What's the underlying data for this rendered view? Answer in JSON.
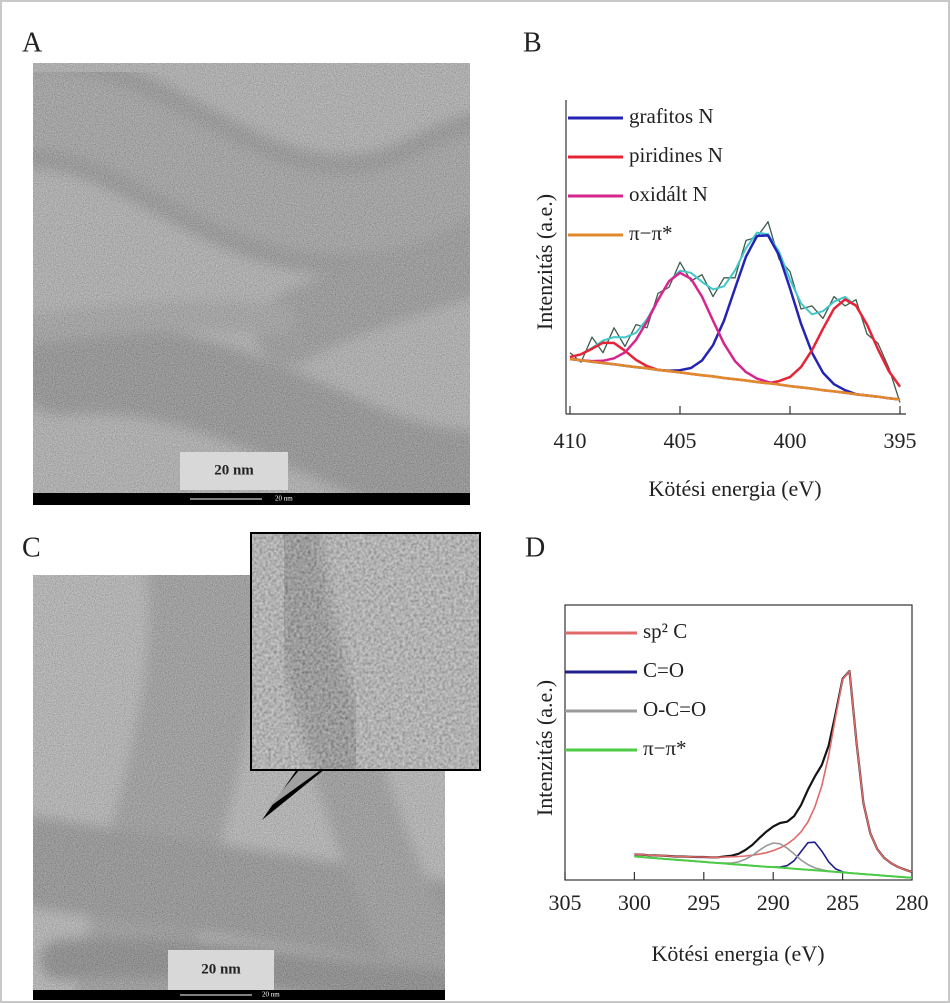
{
  "figure": {
    "panel_labels": [
      "A",
      "B",
      "C",
      "D"
    ]
  },
  "images": [
    {
      "scale_label": "20 nm",
      "scale_bar_label": "20 nm"
    },
    {
      "scale_label": "20 nm",
      "scale_bar_label": "20 nm"
    }
  ],
  "chart_data": [
    {
      "type": "line",
      "xlabel": "Kötési energia (eV)",
      "ylabel": "Intenzitás (a.e.)",
      "xlim": [
        410,
        395
      ],
      "xticks": [
        410,
        405,
        400,
        395
      ],
      "ylim": [
        0,
        100
      ],
      "legend": "upper left",
      "x": [
        410,
        409.5,
        409,
        408.5,
        408,
        407.5,
        407,
        406.5,
        406,
        405.5,
        405,
        404.5,
        404,
        403.5,
        403,
        402.5,
        402,
        401.5,
        401,
        400.5,
        400,
        399.5,
        399,
        398.5,
        398,
        397.5,
        397,
        396.5,
        396,
        395.5,
        395
      ],
      "series": [
        {
          "color": "#3d5c4c",
          "width": 1.3,
          "values": [
            19,
            16,
            24,
            19,
            27,
            21,
            28,
            27,
            38,
            40,
            48,
            42,
            44,
            37,
            43,
            43,
            55,
            56,
            61,
            49,
            45,
            33,
            34,
            30,
            37,
            34,
            36,
            25,
            22,
            14,
            3
          ]
        },
        {
          "color": "#40c8c8",
          "width": 2,
          "values": [
            17.6,
            18.5,
            20.5,
            22.9,
            24.0,
            23.9,
            25.4,
            29.7,
            35.9,
            41.9,
            45.3,
            44.6,
            41.7,
            39.3,
            40.3,
            45.4,
            52.5,
            57.5,
            57.0,
            51.4,
            42.5,
            34.8,
            31.3,
            32.3,
            35.4,
            36.9,
            34.1,
            28.0,
            20.1,
            13.0,
            8.1
          ]
        },
        {
          "name": "grafitos N",
          "color": "#2424b4",
          "width": 2.5,
          "values": [
            17.0,
            16.6,
            16.1,
            15.7,
            15.3,
            14.8,
            14.4,
            14.0,
            13.5,
            13.2,
            13.4,
            14.1,
            16.5,
            21.4,
            29.3,
            39.6,
            49.8,
            56.4,
            56.6,
            50.3,
            39.6,
            28.3,
            19.0,
            12.6,
            8.9,
            7.0,
            5.7,
            5.3,
            4.9,
            4.4,
            4.0
          ]
        },
        {
          "name": "piridines N",
          "color": "#e62436",
          "width": 2.5,
          "values": [
            17.6,
            18.5,
            20.3,
            22.2,
            22.1,
            19.6,
            16.7,
            14.7,
            13.5,
            13.1,
            12.7,
            12.2,
            11.8,
            11.4,
            10.9,
            10.5,
            10.1,
            9.6,
            9.2,
            9.9,
            11.2,
            14.4,
            19.8,
            26.7,
            33.1,
            36.1,
            34.1,
            28.0,
            20.1,
            13.0,
            8.1
          ]
        },
        {
          "name": "oxidált N",
          "color": "#d6268e",
          "width": 2.5,
          "values": [
            17.0,
            16.6,
            16.3,
            16.4,
            17.2,
            19.1,
            23.1,
            29.0,
            35.9,
            41.9,
            44.6,
            42.7,
            37.0,
            29.3,
            21.9,
            16.3,
            12.8,
            10.7,
            9.6,
            8.8,
            8.3,
            7.9,
            7.5,
            7.0,
            6.6,
            6.2,
            5.7,
            5.3,
            4.9,
            4.4,
            4.0
          ]
        },
        {
          "name": "π−π*",
          "color": "#e08a2c",
          "width": 2.5,
          "values": [
            17.0,
            16.6,
            16.1,
            15.7,
            15.3,
            14.8,
            14.4,
            14.0,
            13.5,
            13.1,
            12.7,
            12.2,
            11.8,
            11.4,
            10.9,
            10.5,
            10.1,
            9.6,
            9.2,
            8.8,
            8.3,
            7.9,
            7.5,
            7.0,
            6.6,
            6.2,
            5.7,
            5.3,
            4.9,
            4.4,
            4.0
          ]
        }
      ]
    },
    {
      "type": "line",
      "xlabel": "Kötési energia (eV)",
      "ylabel": "Intenzitás (a.e.)",
      "xlim": [
        305,
        280
      ],
      "xticks": [
        305,
        300,
        295,
        290,
        285,
        280
      ],
      "ylim": [
        0,
        100
      ],
      "legend": "upper left",
      "x": [
        300,
        299.5,
        299,
        298.5,
        298,
        297.5,
        297,
        296.5,
        296,
        295.5,
        295,
        294.5,
        294,
        293.5,
        293,
        292.5,
        292,
        291.5,
        291,
        290.5,
        290,
        289.5,
        289,
        288.5,
        288,
        287.5,
        287,
        286.5,
        286,
        285.5,
        285,
        284.5,
        284,
        283.5,
        283,
        282.5,
        282,
        281.5,
        281,
        280.5,
        280
      ],
      "series": [
        {
          "color": "#151515",
          "width": 2.2,
          "values": [
            9.5,
            9.4,
            9.2,
            9.1,
            9.0,
            8.9,
            8.7,
            8.7,
            8.6,
            8.5,
            8.5,
            8.4,
            8.4,
            8.7,
            9.0,
            9.7,
            11.1,
            13.0,
            15.5,
            17.9,
            19.8,
            21.1,
            21.6,
            23.6,
            27.7,
            33.4,
            38.3,
            42.6,
            49.8,
            61.8,
            74.5,
            77.4,
            51.0,
            28.5,
            17.2,
            11.4,
            8.2,
            6.2,
            4.8,
            3.8,
            3.0
          ]
        },
        {
          "name": "sp² C",
          "color": "#e06a6a",
          "width": 1.6,
          "values": [
            9.5,
            9.4,
            9.2,
            9.1,
            9.0,
            8.9,
            8.7,
            8.7,
            8.6,
            8.5,
            8.5,
            8.4,
            8.4,
            8.5,
            8.6,
            8.7,
            8.9,
            9.2,
            9.6,
            10.1,
            10.9,
            11.9,
            13.3,
            15.2,
            17.8,
            21.5,
            27.0,
            34.9,
            46.2,
            60.7,
            74.3,
            77.4,
            51.0,
            28.5,
            17.2,
            11.4,
            8.2,
            6.2,
            4.8,
            3.8,
            3.0
          ]
        },
        {
          "name": "C=O",
          "color": "#20208c",
          "width": 1.6,
          "values": [
            8.7,
            8.5,
            8.3,
            8.1,
            7.9,
            7.7,
            7.5,
            7.3,
            7.1,
            6.9,
            6.7,
            6.5,
            6.3,
            6.1,
            5.9,
            5.7,
            5.5,
            5.3,
            5.1,
            4.9,
            4.8,
            4.8,
            5.3,
            7.1,
            10.5,
            13.8,
            14.0,
            10.7,
            6.7,
            4.1,
            3.0,
            2.6,
            2.4,
            2.2,
            2.0,
            1.8,
            1.6,
            1.4,
            1.2,
            1.0,
            0.8
          ]
        },
        {
          "name": "O-C=O",
          "color": "#9a9a9a",
          "width": 1.6,
          "values": [
            8.7,
            8.5,
            8.3,
            8.1,
            7.9,
            7.7,
            7.5,
            7.3,
            7.1,
            6.9,
            6.7,
            6.5,
            6.3,
            6.3,
            6.3,
            6.7,
            7.7,
            9.1,
            11.0,
            12.7,
            13.7,
            13.4,
            11.8,
            9.7,
            7.4,
            5.7,
            4.5,
            3.8,
            3.3,
            3.0,
            2.8,
            2.6,
            2.4,
            2.2,
            2.0,
            1.8,
            1.6,
            1.4,
            1.2,
            1.0,
            0.8
          ]
        },
        {
          "name": "π−π*",
          "color": "#4ccc44",
          "width": 2,
          "values": [
            8.7,
            8.5,
            8.3,
            8.1,
            7.9,
            7.7,
            7.5,
            7.3,
            7.1,
            6.9,
            6.7,
            6.5,
            6.3,
            6.1,
            5.9,
            5.7,
            5.5,
            5.3,
            5.1,
            4.9,
            4.8,
            4.6,
            4.4,
            4.2,
            4.0,
            3.8,
            3.6,
            3.4,
            3.2,
            3.0,
            2.8,
            2.6,
            2.4,
            2.2,
            2.0,
            1.8,
            1.6,
            1.4,
            1.2,
            1.0,
            0.8
          ]
        }
      ]
    }
  ]
}
